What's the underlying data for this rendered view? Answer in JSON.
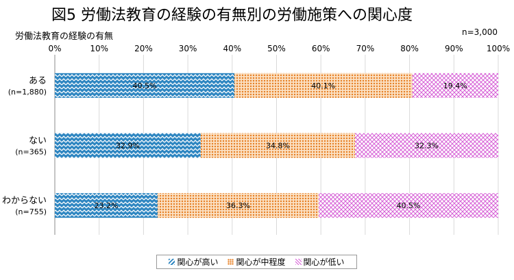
{
  "header": {
    "title": "図5 労働法教育の経験の有無別の労働施策への関心度",
    "subtitle": "労働法教育の経験の有無",
    "note": "n=3,000"
  },
  "legend": {
    "items": [
      "関心が高い",
      "関心が中程度",
      "関心が低い"
    ]
  },
  "colors": {
    "high": "#2e86c1",
    "mid": "#e67e22",
    "low": "#d65ed6"
  },
  "chart_data": {
    "type": "bar",
    "orientation": "horizontal-stacked-100",
    "xlim": [
      0,
      100
    ],
    "xticks": [
      "0%",
      "10%",
      "20%",
      "30%",
      "40%",
      "50%",
      "60%",
      "70%",
      "80%",
      "90%",
      "100%"
    ],
    "categories": [
      {
        "label": "ある",
        "n": "(n=1,880)"
      },
      {
        "label": "ない",
        "n": "(n=365)"
      },
      {
        "label": "わからない",
        "n": "(n=755)"
      }
    ],
    "series": [
      {
        "name": "関心が高い",
        "values": [
          40.5,
          32.9,
          23.2
        ],
        "labels": [
          "40.5%",
          "32.9%",
          "23.2%"
        ]
      },
      {
        "name": "関心が中程度",
        "values": [
          40.1,
          34.8,
          36.3
        ],
        "labels": [
          "40.1%",
          "34.8%",
          "36.3%"
        ]
      },
      {
        "name": "関心が低い",
        "values": [
          19.4,
          32.3,
          40.5
        ],
        "labels": [
          "19.4%",
          "32.3%",
          "40.5%"
        ]
      }
    ],
    "legend_position": "bottom",
    "grid": true
  }
}
